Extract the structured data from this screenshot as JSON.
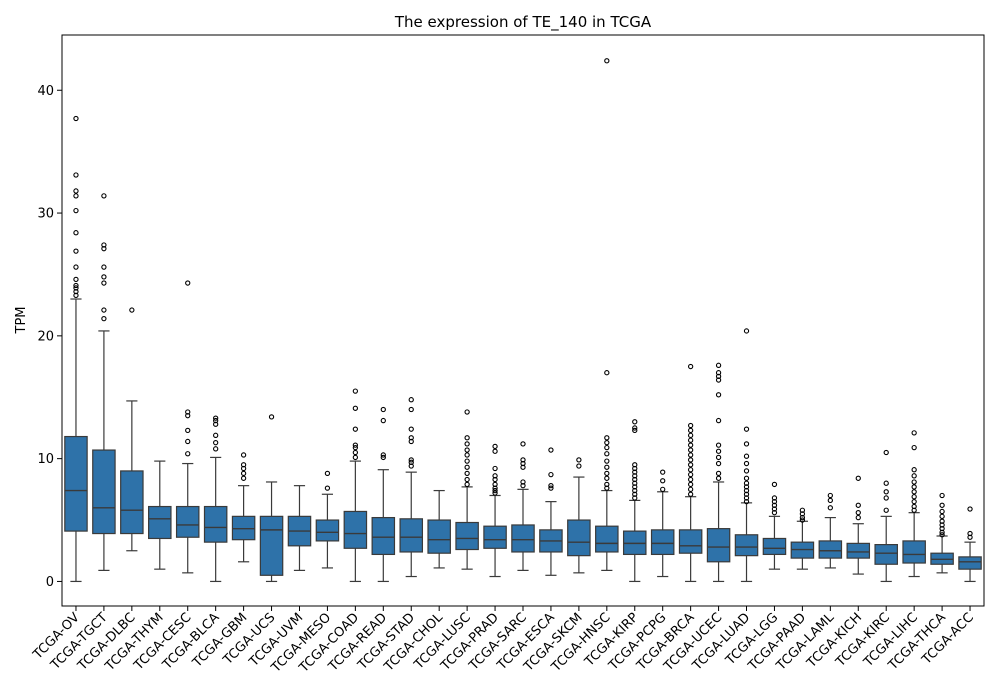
{
  "chart_data": {
    "type": "boxplot",
    "title": "The expression of TE_140 in TCGA",
    "xlabel": "",
    "ylabel": "TPM",
    "ylim": [
      -2,
      44.5
    ],
    "yticks": [
      0,
      10,
      20,
      30,
      40
    ],
    "grid": false,
    "legend": "none",
    "box_color": "#2e72a9",
    "line_color": "#3a3a3a",
    "categories": [
      "TCGA-OV",
      "TCGA-TGCT",
      "TCGA-DLBC",
      "TCGA-THYM",
      "TCGA-CESC",
      "TCGA-BLCA",
      "TCGA-GBM",
      "TCGA-UCS",
      "TCGA-UVM",
      "TCGA-MESO",
      "TCGA-COAD",
      "TCGA-READ",
      "TCGA-STAD",
      "TCGA-CHOL",
      "TCGA-LUSC",
      "TCGA-PRAD",
      "TCGA-SARC",
      "TCGA-ESCA",
      "TCGA-SKCM",
      "TCGA-HNSC",
      "TCGA-KIRP",
      "TCGA-PCPG",
      "TCGA-BRCA",
      "TCGA-UCEC",
      "TCGA-LUAD",
      "TCGA-LGG",
      "TCGA-PAAD",
      "TCGA-LAML",
      "TCGA-KICH",
      "TCGA-KIRC",
      "TCGA-LIHC",
      "TCGA-THCA",
      "TCGA-ACC"
    ],
    "boxes": [
      {
        "whislo": 0.0,
        "q1": 4.1,
        "med": 7.4,
        "q3": 11.8,
        "whishi": 23.0,
        "fliers": [
          23.3,
          23.6,
          23.9,
          24.1,
          24.6,
          25.6,
          26.9,
          28.4,
          30.2,
          31.4,
          31.8,
          33.1,
          37.7
        ]
      },
      {
        "whislo": 0.9,
        "q1": 3.9,
        "med": 6.0,
        "q3": 10.7,
        "whishi": 20.4,
        "fliers": [
          21.4,
          22.1,
          24.3,
          24.8,
          25.6,
          27.1,
          27.4,
          31.4
        ]
      },
      {
        "whislo": 2.5,
        "q1": 3.9,
        "med": 5.8,
        "q3": 9.0,
        "whishi": 14.7,
        "fliers": [
          22.1
        ]
      },
      {
        "whislo": 1.0,
        "q1": 3.5,
        "med": 5.1,
        "q3": 6.1,
        "whishi": 9.8,
        "fliers": []
      },
      {
        "whislo": 0.7,
        "q1": 3.6,
        "med": 4.6,
        "q3": 6.1,
        "whishi": 9.6,
        "fliers": [
          10.4,
          11.4,
          12.3,
          13.5,
          13.8,
          24.3
        ]
      },
      {
        "whislo": 0.0,
        "q1": 3.2,
        "med": 4.4,
        "q3": 6.1,
        "whishi": 10.1,
        "fliers": [
          10.8,
          11.3,
          11.9,
          12.8,
          13.1,
          13.3
        ]
      },
      {
        "whislo": 1.6,
        "q1": 3.4,
        "med": 4.3,
        "q3": 5.3,
        "whishi": 7.8,
        "fliers": [
          8.4,
          8.8,
          9.2,
          9.5,
          10.3
        ]
      },
      {
        "whislo": 0.0,
        "q1": 0.5,
        "med": 4.2,
        "q3": 5.3,
        "whishi": 8.1,
        "fliers": [
          13.4
        ]
      },
      {
        "whislo": 0.9,
        "q1": 2.9,
        "med": 4.1,
        "q3": 5.3,
        "whishi": 7.8,
        "fliers": []
      },
      {
        "whislo": 1.1,
        "q1": 3.3,
        "med": 4.0,
        "q3": 5.0,
        "whishi": 7.1,
        "fliers": [
          7.6,
          8.8
        ]
      },
      {
        "whislo": 0.0,
        "q1": 2.7,
        "med": 3.9,
        "q3": 5.7,
        "whishi": 9.8,
        "fliers": [
          10.1,
          10.5,
          10.9,
          11.1,
          12.4,
          14.1,
          15.5
        ]
      },
      {
        "whislo": 0.0,
        "q1": 2.2,
        "med": 3.6,
        "q3": 5.2,
        "whishi": 9.1,
        "fliers": [
          10.1,
          10.3,
          13.1,
          14.0
        ]
      },
      {
        "whislo": 0.4,
        "q1": 2.4,
        "med": 3.6,
        "q3": 5.1,
        "whishi": 8.9,
        "fliers": [
          9.4,
          9.7,
          9.9,
          11.4,
          11.7,
          12.4,
          14.0,
          14.8
        ]
      },
      {
        "whislo": 1.1,
        "q1": 2.3,
        "med": 3.4,
        "q3": 5.0,
        "whishi": 7.4,
        "fliers": []
      },
      {
        "whislo": 1.0,
        "q1": 2.6,
        "med": 3.5,
        "q3": 4.8,
        "whishi": 7.7,
        "fliers": [
          7.9,
          8.3,
          8.8,
          9.3,
          9.8,
          10.3,
          10.7,
          11.2,
          11.7,
          13.8
        ]
      },
      {
        "whislo": 0.4,
        "q1": 2.7,
        "med": 3.4,
        "q3": 4.5,
        "whishi": 7.0,
        "fliers": [
          7.2,
          7.4,
          7.6,
          7.9,
          8.3,
          8.6,
          9.2,
          10.6,
          11.0
        ]
      },
      {
        "whislo": 0.9,
        "q1": 2.4,
        "med": 3.4,
        "q3": 4.6,
        "whishi": 7.5,
        "fliers": [
          7.8,
          8.1,
          9.3,
          9.6,
          9.9,
          11.2
        ]
      },
      {
        "whislo": 0.5,
        "q1": 2.4,
        "med": 3.3,
        "q3": 4.2,
        "whishi": 6.5,
        "fliers": [
          7.6,
          7.8,
          8.7,
          10.7
        ]
      },
      {
        "whislo": 0.7,
        "q1": 2.1,
        "med": 3.2,
        "q3": 5.0,
        "whishi": 8.5,
        "fliers": [
          9.4,
          9.9
        ]
      },
      {
        "whislo": 0.9,
        "q1": 2.4,
        "med": 3.1,
        "q3": 4.5,
        "whishi": 7.4,
        "fliers": [
          7.6,
          7.9,
          8.4,
          8.8,
          9.3,
          9.8,
          10.4,
          10.9,
          11.3,
          11.7,
          17.0,
          42.4
        ]
      },
      {
        "whislo": 0.0,
        "q1": 2.2,
        "med": 3.1,
        "q3": 4.1,
        "whishi": 6.6,
        "fliers": [
          6.8,
          7.1,
          7.4,
          7.7,
          8.0,
          8.3,
          8.6,
          8.9,
          9.2,
          9.5,
          12.3,
          12.5,
          13.0
        ]
      },
      {
        "whislo": 0.4,
        "q1": 2.2,
        "med": 3.1,
        "q3": 4.2,
        "whishi": 7.3,
        "fliers": [
          7.5,
          8.2,
          8.9
        ]
      },
      {
        "whislo": 0.0,
        "q1": 2.3,
        "med": 2.9,
        "q3": 4.2,
        "whishi": 6.9,
        "fliers": [
          7.1,
          7.5,
          7.9,
          8.3,
          8.7,
          9.1,
          9.5,
          9.9,
          10.3,
          10.7,
          11.1,
          11.5,
          11.9,
          12.3,
          12.7,
          17.5
        ]
      },
      {
        "whislo": 0.0,
        "q1": 1.6,
        "med": 2.8,
        "q3": 4.3,
        "whishi": 8.1,
        "fliers": [
          8.4,
          8.8,
          9.6,
          10.1,
          10.6,
          11.1,
          13.1,
          15.2,
          16.4,
          16.7,
          17.0,
          17.6
        ]
      },
      {
        "whislo": 0.0,
        "q1": 2.1,
        "med": 2.8,
        "q3": 3.8,
        "whishi": 6.4,
        "fliers": [
          6.5,
          6.8,
          7.1,
          7.4,
          7.7,
          8.0,
          8.4,
          9.0,
          9.6,
          10.2,
          11.2,
          12.4,
          20.4
        ]
      },
      {
        "whislo": 1.0,
        "q1": 2.2,
        "med": 2.7,
        "q3": 3.5,
        "whishi": 5.3,
        "fliers": [
          5.6,
          5.9,
          6.2,
          6.5,
          6.8,
          7.9
        ]
      },
      {
        "whislo": 1.0,
        "q1": 1.9,
        "med": 2.6,
        "q3": 3.2,
        "whishi": 4.9,
        "fliers": [
          5.0,
          5.2,
          5.5,
          5.8
        ]
      },
      {
        "whislo": 1.1,
        "q1": 1.9,
        "med": 2.5,
        "q3": 3.3,
        "whishi": 5.2,
        "fliers": [
          6.0,
          6.6,
          7.0
        ]
      },
      {
        "whislo": 0.6,
        "q1": 1.9,
        "med": 2.4,
        "q3": 3.1,
        "whishi": 4.7,
        "fliers": [
          5.2,
          5.6,
          6.2,
          8.4
        ]
      },
      {
        "whislo": 0.0,
        "q1": 1.4,
        "med": 2.3,
        "q3": 3.0,
        "whishi": 5.3,
        "fliers": [
          5.8,
          6.8,
          7.3,
          8.0,
          10.5
        ]
      },
      {
        "whislo": 0.4,
        "q1": 1.5,
        "med": 2.2,
        "q3": 3.3,
        "whishi": 5.6,
        "fliers": [
          5.8,
          6.1,
          6.5,
          6.9,
          7.3,
          7.7,
          8.1,
          8.6,
          9.1,
          10.9,
          12.1
        ]
      },
      {
        "whislo": 0.7,
        "q1": 1.4,
        "med": 1.8,
        "q3": 2.3,
        "whishi": 3.7,
        "fliers": [
          3.8,
          4.0,
          4.3,
          4.6,
          4.9,
          5.3,
          5.7,
          6.2,
          7.0
        ]
      },
      {
        "whislo": 0.0,
        "q1": 1.0,
        "med": 1.6,
        "q3": 2.0,
        "whishi": 3.2,
        "fliers": [
          3.6,
          3.9,
          5.9
        ]
      }
    ]
  }
}
